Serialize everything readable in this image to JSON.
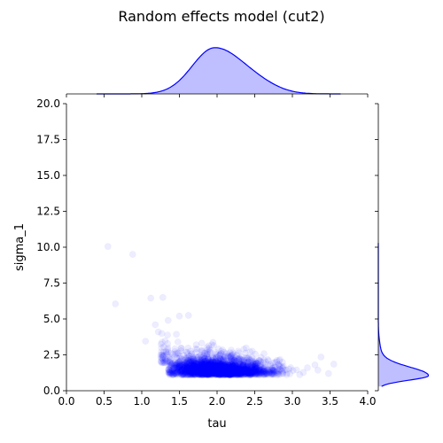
{
  "chart_data": {
    "type": "scatter",
    "title": "Random effects model (cut2)",
    "xlabel": "tau",
    "ylabel": "sigma_1",
    "xlim": [
      0.0,
      4.0
    ],
    "ylim": [
      0.0,
      20.0
    ],
    "x_ticks": [
      "0.0",
      "0.5",
      "1.0",
      "1.5",
      "2.0",
      "2.5",
      "3.0",
      "3.5",
      "4.0"
    ],
    "y_ticks": [
      "0.0",
      "2.5",
      "5.0",
      "7.5",
      "10.0",
      "12.5",
      "15.0",
      "17.5",
      "20.0"
    ],
    "grid": false,
    "point_color": "#0000ff",
    "point_alpha": 0.07,
    "cluster": {
      "x_center": 2.0,
      "x_spread": 0.35,
      "y_center": 1.3,
      "y_spread": 0.6,
      "n_points": 2600
    },
    "outliers": [
      {
        "x": 0.55,
        "y": 10.05
      },
      {
        "x": 0.88,
        "y": 9.5
      },
      {
        "x": 0.65,
        "y": 6.05
      },
      {
        "x": 1.12,
        "y": 6.45
      },
      {
        "x": 1.28,
        "y": 6.5
      },
      {
        "x": 1.05,
        "y": 3.45
      },
      {
        "x": 1.18,
        "y": 4.6
      },
      {
        "x": 1.62,
        "y": 5.25
      },
      {
        "x": 1.5,
        "y": 5.2
      },
      {
        "x": 3.38,
        "y": 2.35
      },
      {
        "x": 3.55,
        "y": 1.85
      },
      {
        "x": 3.3,
        "y": 1.8
      },
      {
        "x": 3.48,
        "y": 1.2
      },
      {
        "x": 3.2,
        "y": 1.6
      },
      {
        "x": 1.35,
        "y": 4.9
      },
      {
        "x": 1.22,
        "y": 4.1
      }
    ],
    "marginal_x": {
      "type": "kde",
      "mode": 1.97,
      "range": [
        0.4,
        3.65
      ],
      "color": "#0000ff"
    },
    "marginal_y": {
      "type": "kde",
      "mode": 1.05,
      "range": [
        0.3,
        10.3
      ],
      "color": "#0000ff"
    }
  }
}
